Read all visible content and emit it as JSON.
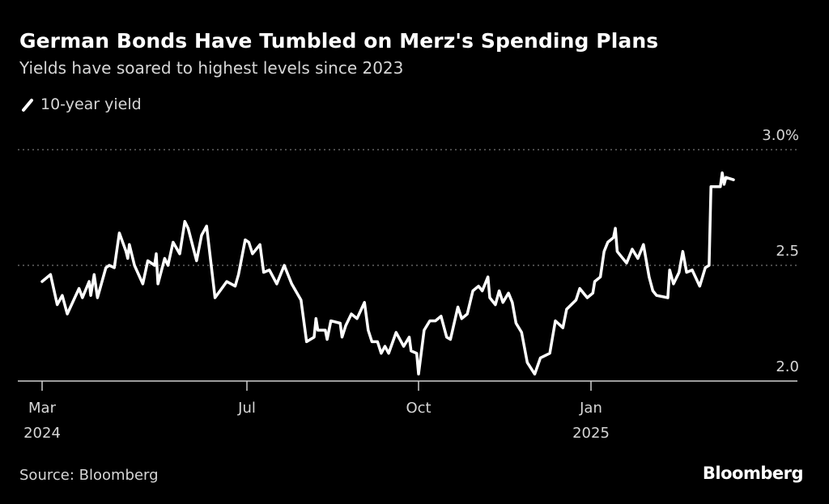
{
  "header": {
    "title": "German Bonds Have Tumbled on Merz's Spending Plans",
    "subtitle": "Yields have soared to highest levels since 2023"
  },
  "legend": {
    "label": "10-year yield",
    "icon": "line-slash-icon"
  },
  "footer": {
    "source": "Source: Bloomberg",
    "logo": "Bloomberg"
  },
  "colors": {
    "background": "#000000",
    "line": "#ffffff",
    "grid": "#777777",
    "text": "#d6d6d6"
  },
  "chart_data": {
    "type": "line",
    "title": "German Bonds Have Tumbled on Merz's Spending Plans",
    "subtitle": "Yields have soared to highest levels since 2023",
    "xlabel": "",
    "ylabel": "",
    "ylim": [
      2.0,
      3.0
    ],
    "grid": "horizontal dotted",
    "legend_position": "top-left",
    "y_ticks": [
      {
        "value": 2.0,
        "label": "2.0"
      },
      {
        "value": 2.5,
        "label": "2.5"
      },
      {
        "value": 3.0,
        "label": "3.0%"
      }
    ],
    "x_ticks": [
      {
        "date": "2024-03-01",
        "label": "Mar",
        "sublabel": "2024"
      },
      {
        "date": "2024-07-01",
        "label": "Jul",
        "sublabel": ""
      },
      {
        "date": "2024-10-01",
        "label": "Oct",
        "sublabel": ""
      },
      {
        "date": "2025-01-01",
        "label": "Jan",
        "sublabel": "2025"
      }
    ],
    "series": [
      {
        "name": "10-year yield",
        "points": [
          [
            "2024-03-01",
            2.43
          ],
          [
            "2024-03-06",
            2.46
          ],
          [
            "2024-03-10",
            2.33
          ],
          [
            "2024-03-13",
            2.37
          ],
          [
            "2024-03-16",
            2.29
          ],
          [
            "2024-03-23",
            2.4
          ],
          [
            "2024-03-25",
            2.36
          ],
          [
            "2024-03-29",
            2.43
          ],
          [
            "2024-03-30",
            2.37
          ],
          [
            "2024-04-01",
            2.46
          ],
          [
            "2024-04-03",
            2.36
          ],
          [
            "2024-04-08",
            2.49
          ],
          [
            "2024-04-10",
            2.5
          ],
          [
            "2024-04-13",
            2.49
          ],
          [
            "2024-04-16",
            2.64
          ],
          [
            "2024-04-20",
            2.56
          ],
          [
            "2024-04-21",
            2.53
          ],
          [
            "2024-04-22",
            2.59
          ],
          [
            "2024-04-25",
            2.5
          ],
          [
            "2024-04-30",
            2.42
          ],
          [
            "2024-05-03",
            2.52
          ],
          [
            "2024-05-07",
            2.5
          ],
          [
            "2024-05-08",
            2.55
          ],
          [
            "2024-05-09",
            2.42
          ],
          [
            "2024-05-13",
            2.53
          ],
          [
            "2024-05-15",
            2.5
          ],
          [
            "2024-05-18",
            2.6
          ],
          [
            "2024-05-22",
            2.55
          ],
          [
            "2024-05-25",
            2.69
          ],
          [
            "2024-05-27",
            2.66
          ],
          [
            "2024-06-01",
            2.52
          ],
          [
            "2024-06-04",
            2.63
          ],
          [
            "2024-06-07",
            2.67
          ],
          [
            "2024-06-12",
            2.36
          ],
          [
            "2024-06-16",
            2.4
          ],
          [
            "2024-06-19",
            2.43
          ],
          [
            "2024-06-24",
            2.41
          ],
          [
            "2024-06-26",
            2.46
          ],
          [
            "2024-06-30",
            2.61
          ],
          [
            "2024-07-02",
            2.6
          ],
          [
            "2024-07-04",
            2.55
          ],
          [
            "2024-07-08",
            2.59
          ],
          [
            "2024-07-10",
            2.47
          ],
          [
            "2024-07-13",
            2.48
          ],
          [
            "2024-07-17",
            2.42
          ],
          [
            "2024-07-21",
            2.5
          ],
          [
            "2024-07-25",
            2.42
          ],
          [
            "2024-07-30",
            2.35
          ],
          [
            "2024-08-02",
            2.17
          ],
          [
            "2024-08-06",
            2.19
          ],
          [
            "2024-08-07",
            2.27
          ],
          [
            "2024-08-08",
            2.22
          ],
          [
            "2024-08-12",
            2.22
          ],
          [
            "2024-08-13",
            2.18
          ],
          [
            "2024-08-15",
            2.26
          ],
          [
            "2024-08-20",
            2.25
          ],
          [
            "2024-08-21",
            2.19
          ],
          [
            "2024-08-23",
            2.24
          ],
          [
            "2024-08-26",
            2.29
          ],
          [
            "2024-08-29",
            2.27
          ],
          [
            "2024-09-02",
            2.34
          ],
          [
            "2024-09-04",
            2.22
          ],
          [
            "2024-09-06",
            2.17
          ],
          [
            "2024-09-09",
            2.17
          ],
          [
            "2024-09-11",
            2.12
          ],
          [
            "2024-09-13",
            2.15
          ],
          [
            "2024-09-15",
            2.12
          ],
          [
            "2024-09-19",
            2.21
          ],
          [
            "2024-09-23",
            2.15
          ],
          [
            "2024-09-26",
            2.19
          ],
          [
            "2024-09-27",
            2.13
          ],
          [
            "2024-09-30",
            2.12
          ],
          [
            "2024-10-01",
            2.03
          ],
          [
            "2024-10-04",
            2.22
          ],
          [
            "2024-10-07",
            2.26
          ],
          [
            "2024-10-10",
            2.26
          ],
          [
            "2024-10-13",
            2.28
          ],
          [
            "2024-10-16",
            2.19
          ],
          [
            "2024-10-18",
            2.18
          ],
          [
            "2024-10-22",
            2.32
          ],
          [
            "2024-10-24",
            2.27
          ],
          [
            "2024-10-27",
            2.29
          ],
          [
            "2024-10-30",
            2.39
          ],
          [
            "2024-11-02",
            2.41
          ],
          [
            "2024-11-04",
            2.39
          ],
          [
            "2024-11-07",
            2.45
          ],
          [
            "2024-11-08",
            2.36
          ],
          [
            "2024-11-11",
            2.33
          ],
          [
            "2024-11-13",
            2.39
          ],
          [
            "2024-11-15",
            2.34
          ],
          [
            "2024-11-18",
            2.38
          ],
          [
            "2024-11-20",
            2.34
          ],
          [
            "2024-11-22",
            2.25
          ],
          [
            "2024-11-25",
            2.21
          ],
          [
            "2024-11-28",
            2.08
          ],
          [
            "2024-12-02",
            2.03
          ],
          [
            "2024-12-05",
            2.1
          ],
          [
            "2024-12-10",
            2.12
          ],
          [
            "2024-12-13",
            2.26
          ],
          [
            "2024-12-17",
            2.23
          ],
          [
            "2024-12-19",
            2.31
          ],
          [
            "2024-12-24",
            2.35
          ],
          [
            "2024-12-26",
            2.4
          ],
          [
            "2024-12-30",
            2.36
          ],
          [
            "2025-01-02",
            2.38
          ],
          [
            "2025-01-03",
            2.43
          ],
          [
            "2025-01-06",
            2.45
          ],
          [
            "2025-01-08",
            2.56
          ],
          [
            "2025-01-10",
            2.6
          ],
          [
            "2025-01-13",
            2.62
          ],
          [
            "2025-01-14",
            2.66
          ],
          [
            "2025-01-15",
            2.56
          ],
          [
            "2025-01-17",
            2.54
          ],
          [
            "2025-01-20",
            2.51
          ],
          [
            "2025-01-23",
            2.57
          ],
          [
            "2025-01-26",
            2.53
          ],
          [
            "2025-01-29",
            2.59
          ],
          [
            "2025-02-01",
            2.45
          ],
          [
            "2025-02-03",
            2.39
          ],
          [
            "2025-02-05",
            2.37
          ],
          [
            "2025-02-11",
            2.36
          ],
          [
            "2025-02-12",
            2.48
          ],
          [
            "2025-02-14",
            2.42
          ],
          [
            "2025-02-17",
            2.47
          ],
          [
            "2025-02-19",
            2.56
          ],
          [
            "2025-02-21",
            2.47
          ],
          [
            "2025-02-24",
            2.48
          ],
          [
            "2025-02-28",
            2.41
          ],
          [
            "2025-03-03",
            2.49
          ],
          [
            "2025-03-05",
            2.5
          ],
          [
            "2025-03-06",
            2.84
          ],
          [
            "2025-03-11",
            2.84
          ],
          [
            "2025-03-12",
            2.9
          ],
          [
            "2025-03-13",
            2.85
          ],
          [
            "2025-03-14",
            2.88
          ],
          [
            "2025-03-18",
            2.87
          ]
        ]
      }
    ]
  }
}
